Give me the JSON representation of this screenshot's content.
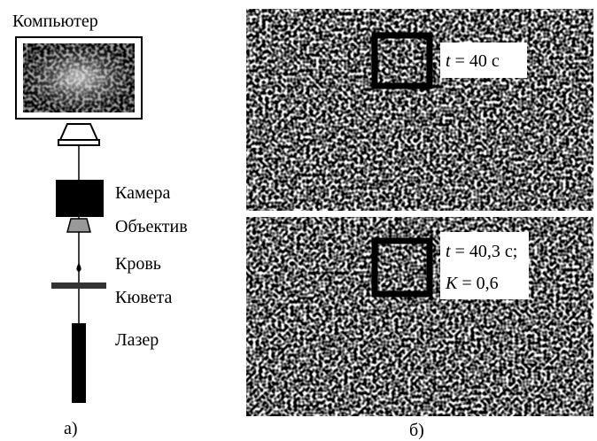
{
  "panel_a": {
    "labels": {
      "computer": "Компьютер",
      "camera": "Камера",
      "objective": "Объектив",
      "blood": "Кровь",
      "cuvette": "Кювета",
      "laser": "Лазер"
    },
    "caption": "а)"
  },
  "panel_b": {
    "images": [
      {
        "lines": [
          {
            "var": "t",
            "rest": " = 40 с"
          }
        ]
      },
      {
        "lines": [
          {
            "var": "t",
            "rest": " = 40,3 с;"
          },
          {
            "var": "K",
            "rest": " = 0,6"
          }
        ]
      }
    ],
    "caption": "б)"
  }
}
